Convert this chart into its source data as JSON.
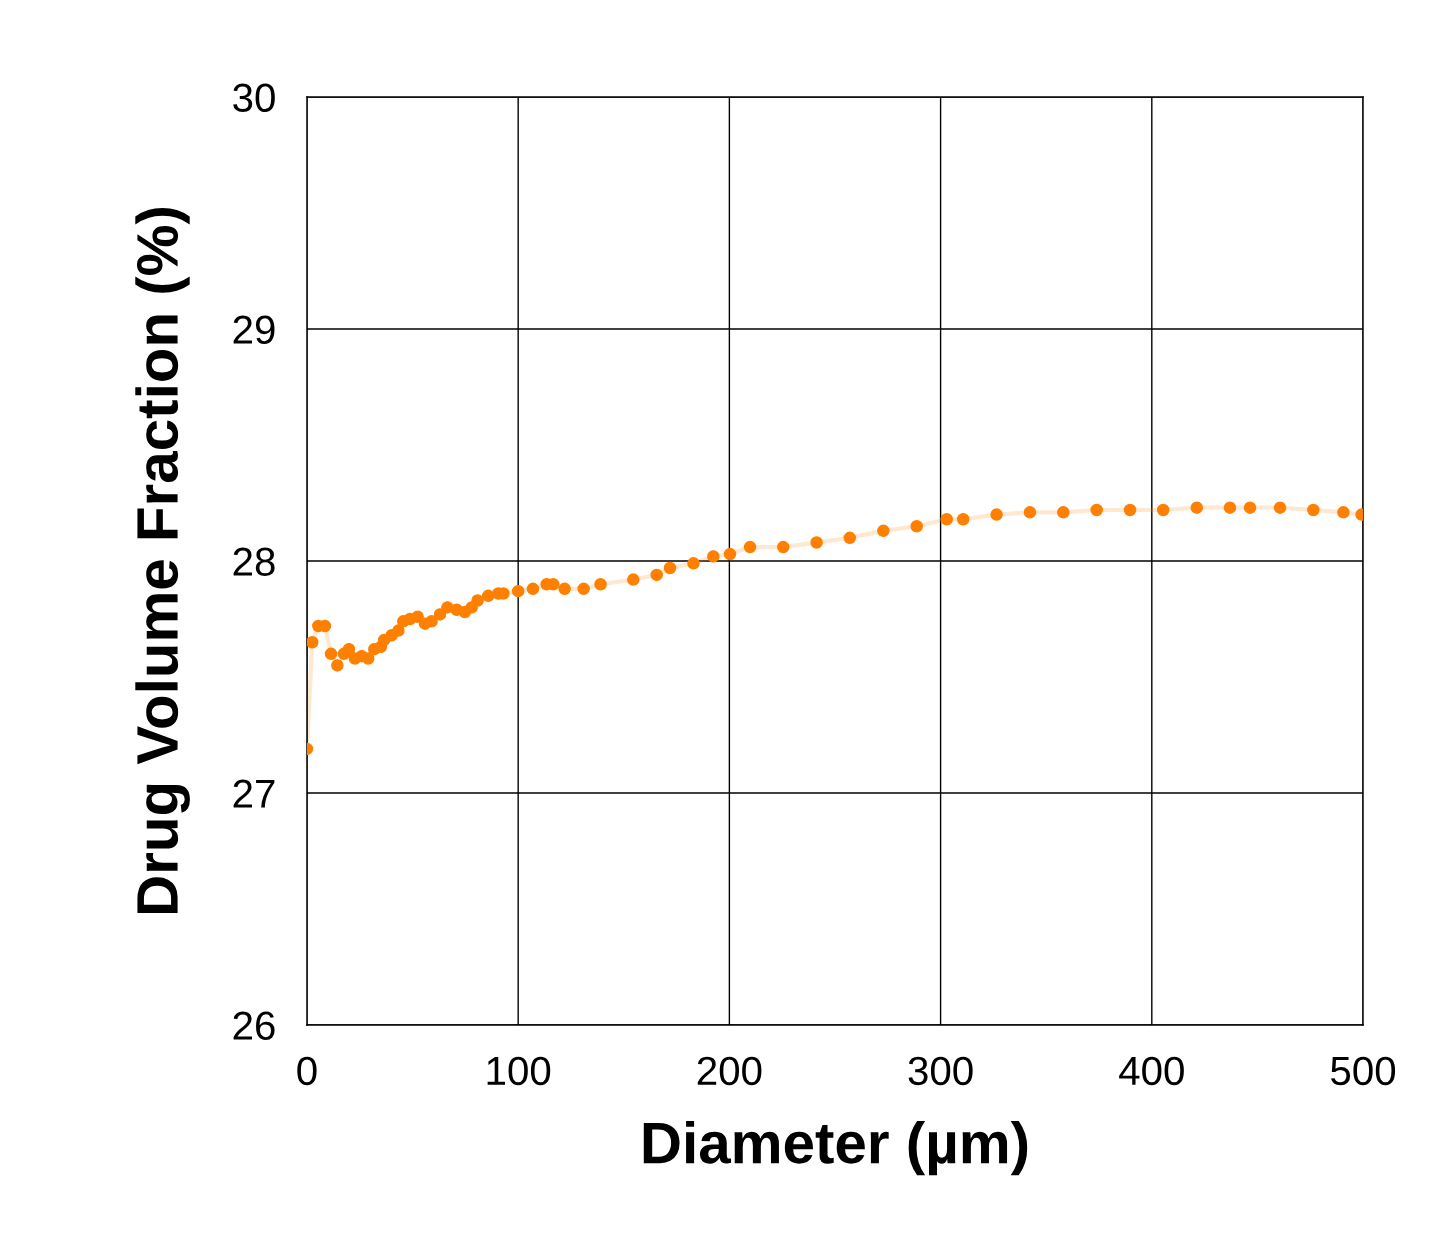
{
  "chart_data": {
    "type": "line",
    "xlabel": "Diameter (µm)",
    "ylabel": "Drug Volume Fraction (%)",
    "xlim": [
      0,
      500
    ],
    "xticks": [
      0,
      100,
      200,
      300,
      400,
      500
    ],
    "ylim": [
      26,
      30
    ],
    "yticks": [
      26,
      27,
      28,
      29,
      30
    ],
    "grid": true,
    "marker": "circle",
    "line_style": "solid",
    "series": [
      {
        "color": "#ff8000",
        "x": [
          0,
          2.5,
          5.4,
          8.5,
          11.4,
          14.4,
          17.5,
          19.9,
          22.7,
          25.9,
          29,
          31.9,
          35,
          36.6,
          40.1,
          43.3,
          45.6,
          48.8,
          52.4,
          55.9,
          59,
          63,
          66.5,
          70.9,
          74.8,
          78,
          80.8,
          85.8,
          90.6,
          93,
          100,
          107,
          113.5,
          116.6,
          122,
          131,
          139,
          154.5,
          165.6,
          171.9,
          183,
          192.4,
          200.3,
          209.8,
          225.5,
          241.3,
          257,
          272.9,
          288.7,
          302.9,
          310.7,
          326.5,
          342.3,
          358.1,
          373.9,
          389.7,
          405.4,
          421.3,
          437,
          446.5,
          460.7,
          476.5,
          490.7,
          499.3
        ],
        "values": [
          27.19,
          27.65,
          27.72,
          27.72,
          27.6,
          27.55,
          27.6,
          27.62,
          27.58,
          27.59,
          27.58,
          27.62,
          27.63,
          27.66,
          27.68,
          27.7,
          27.74,
          27.75,
          27.76,
          27.73,
          27.74,
          27.77,
          27.8,
          27.79,
          27.78,
          27.8,
          27.83,
          27.85,
          27.86,
          27.86,
          27.87,
          27.88,
          27.9,
          27.9,
          27.88,
          27.88,
          27.9,
          27.92,
          27.94,
          27.97,
          27.99,
          28.02,
          28.03,
          28.06,
          28.06,
          28.08,
          28.1,
          28.13,
          28.15,
          28.18,
          28.18,
          28.2,
          28.21,
          28.21,
          28.22,
          28.22,
          28.22,
          28.23,
          28.23,
          28.23,
          28.23,
          28.22,
          28.21,
          28.2
        ]
      }
    ]
  }
}
